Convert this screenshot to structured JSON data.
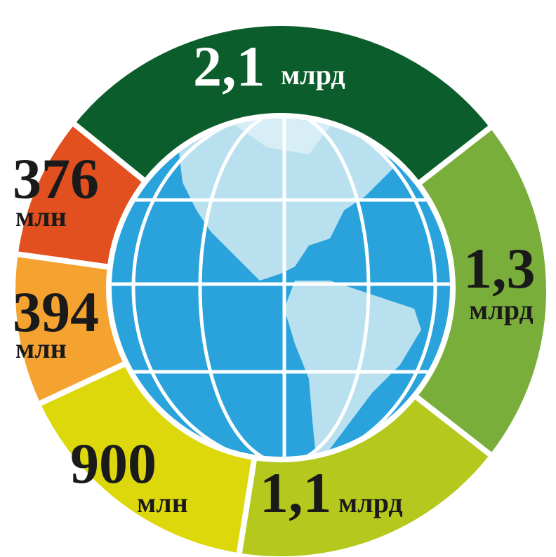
{
  "segments": [
    {
      "value": "2,1",
      "unit": "млрд"
    },
    {
      "value": "1,3",
      "unit": "млрд"
    },
    {
      "value": "1,1",
      "unit": "млрд"
    },
    {
      "value": "900",
      "unit": "млн"
    },
    {
      "value": "394",
      "unit": "млн"
    },
    {
      "value": "376",
      "unit": "млн"
    }
  ]
}
